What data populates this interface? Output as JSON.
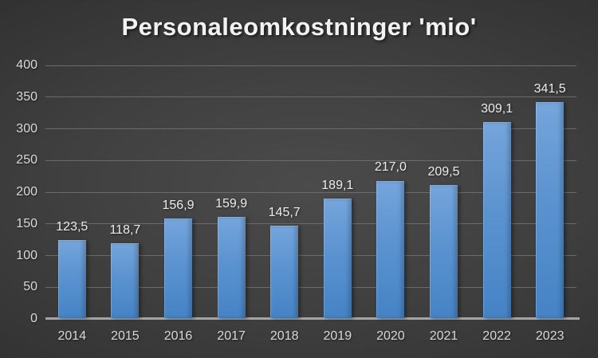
{
  "chart_data": {
    "type": "bar",
    "title": "Personaleomkostninger 'mio'",
    "categories": [
      "2014",
      "2015",
      "2016",
      "2017",
      "2018",
      "2019",
      "2020",
      "2021",
      "2022",
      "2023"
    ],
    "values": [
      123.5,
      118.7,
      156.9,
      159.9,
      145.7,
      189.1,
      217.0,
      209.5,
      309.1,
      341.5
    ],
    "data_labels": [
      "123,5",
      "118,7",
      "156,9",
      "159,9",
      "145,7",
      "189,1",
      "217,0",
      "209,5",
      "309,1",
      "341,5"
    ],
    "ylim": [
      0,
      400
    ],
    "ytick_step": 50,
    "yticks": [
      0,
      50,
      100,
      150,
      200,
      250,
      300,
      350,
      400
    ],
    "xlabel": "",
    "ylabel": "",
    "grid": true,
    "legend": false,
    "colors": {
      "bar_gradient_top": "#75a5db",
      "bar_gradient_bottom": "#4583c5",
      "background_center": "#4b4b4b",
      "background_edge": "#242424",
      "gridline": "#6b6b6b",
      "axis_line": "#a4a4a4",
      "tick_label": "#d9d9d9",
      "data_label": "#ececec",
      "title": "#f2f2f2"
    }
  }
}
